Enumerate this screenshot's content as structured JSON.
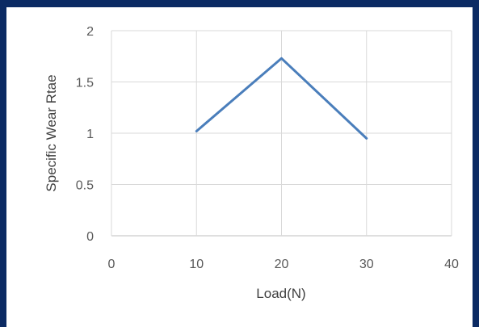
{
  "chart_data": {
    "type": "line",
    "title": "",
    "xlabel": "Load(N)",
    "ylabel": "Specific Wear Rtae",
    "xlim": [
      0,
      40
    ],
    "ylim": [
      0,
      2
    ],
    "x_ticks": [
      0,
      10,
      20,
      30,
      40
    ],
    "x_tick_labels": [
      "0",
      "10",
      "20",
      "30",
      "40"
    ],
    "y_ticks": [
      0,
      0.5,
      1,
      1.5,
      2
    ],
    "y_tick_labels": [
      "0",
      "0.5",
      "1",
      "1.5",
      "2"
    ],
    "grid": true,
    "legend": "none",
    "series": [
      {
        "x": [
          10,
          20,
          30
        ],
        "y": [
          1.02,
          1.73,
          0.95
        ],
        "color": "#4a7ebb"
      }
    ]
  },
  "colors": {
    "frame": "#0b2a63",
    "grid": "#d9d9d9",
    "line": "#4a7ebb"
  }
}
